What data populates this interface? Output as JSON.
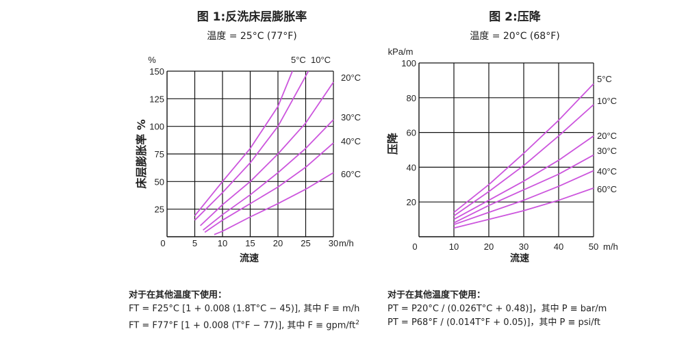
{
  "chart_data": [
    {
      "type": "line",
      "title": "图 1:反洗床层膨胀率",
      "subtitle": "温度 = 25°C (77°F)",
      "xlabel": "流速",
      "xunit": "m/h",
      "ylabel": "床层膨胀率 %",
      "yunit": "%",
      "xlim": [
        0,
        30
      ],
      "ylim": [
        0,
        150
      ],
      "xticks": [
        0,
        5,
        10,
        15,
        20,
        25,
        30
      ],
      "yticks": [
        25,
        50,
        75,
        100,
        125,
        150
      ],
      "ytick_labels": [
        "25",
        "50",
        "75",
        "100",
        "125",
        "150"
      ],
      "xtick_labels": [
        "0",
        "5",
        "10",
        "15",
        "20",
        "25",
        "30"
      ],
      "grid": true,
      "series": [
        {
          "name": "5°C",
          "x": [
            5,
            10,
            15,
            20,
            22.6
          ],
          "y": [
            19,
            50,
            80,
            118,
            150
          ]
        },
        {
          "name": "10°C",
          "x": [
            5,
            10,
            15,
            20,
            25.5
          ],
          "y": [
            15,
            40,
            67,
            100,
            150
          ]
        },
        {
          "name": "20°C",
          "x": [
            6,
            10,
            15,
            20,
            25,
            30
          ],
          "y": [
            10,
            29,
            50,
            75,
            103,
            140
          ]
        },
        {
          "name": "30°C",
          "x": [
            6.5,
            10,
            15,
            20,
            25,
            30
          ],
          "y": [
            6,
            20,
            38,
            58,
            80,
            106
          ]
        },
        {
          "name": "40°C",
          "x": [
            6.8,
            10,
            15,
            20,
            25,
            30
          ],
          "y": [
            4,
            15,
            30,
            45,
            63,
            85
          ]
        },
        {
          "name": "60°C",
          "x": [
            8.5,
            10,
            15,
            20,
            25,
            30
          ],
          "y": [
            2,
            5,
            18,
            30,
            43,
            58
          ]
        }
      ]
    },
    {
      "type": "line",
      "title": "图 2:压降",
      "subtitle": "温度 = 20°C (68°F)",
      "xlabel": "流速",
      "xunit": "m/h",
      "ylabel": "压降",
      "yunit": "kPa/m",
      "xlim": [
        0,
        50
      ],
      "ylim": [
        0,
        100
      ],
      "xticks": [
        0,
        10,
        20,
        30,
        40,
        50
      ],
      "yticks": [
        20,
        40,
        60,
        80,
        100
      ],
      "ytick_labels": [
        "20",
        "40",
        "60",
        "80",
        "100"
      ],
      "xtick_labels": [
        "0",
        "10",
        "20",
        "30",
        "40",
        "50"
      ],
      "grid": true,
      "series": [
        {
          "name": "5°C",
          "x": [
            10,
            20,
            30,
            40,
            50
          ],
          "y": [
            14,
            30,
            48,
            67,
            88
          ]
        },
        {
          "name": "10°C",
          "x": [
            10,
            20,
            30,
            40,
            50
          ],
          "y": [
            12,
            26,
            41,
            58,
            76
          ]
        },
        {
          "name": "20°C",
          "x": [
            10,
            20,
            30,
            40,
            50
          ],
          "y": [
            10,
            21,
            32,
            44,
            58
          ]
        },
        {
          "name": "30°C",
          "x": [
            10,
            20,
            30,
            40,
            50
          ],
          "y": [
            8,
            18,
            27,
            36,
            47
          ]
        },
        {
          "name": "40°C",
          "x": [
            10,
            20,
            30,
            40,
            50
          ],
          "y": [
            7,
            14,
            21,
            29,
            38
          ]
        },
        {
          "name": "60°C",
          "x": [
            10,
            20,
            30,
            40,
            50
          ],
          "y": [
            5,
            10,
            15,
            21,
            28
          ]
        }
      ]
    }
  ],
  "colors": {
    "curve": "#cc55dd",
    "grid": "#111111"
  },
  "notes": [
    {
      "heading": "对于在其他温度下使用：",
      "line1": "FT = F25°C [1 + 0.008 (1.8T°C − 45)], 其中 F ≡ m/h",
      "line2": "FT = F77°F [1 + 0.008 (T°F − 77)], 其中 F ≡ gpm/ft",
      "line2_sup": "2"
    },
    {
      "heading": "对于在其他温度下使用：",
      "line1": "PT = P20°C / (0.026T°C + 0.48)]，其中 P ≡ bar/m",
      "line2": "PT = P68°F / (0.014T°F + 0.05)]，其中 P ≡ psi/ft"
    }
  ]
}
